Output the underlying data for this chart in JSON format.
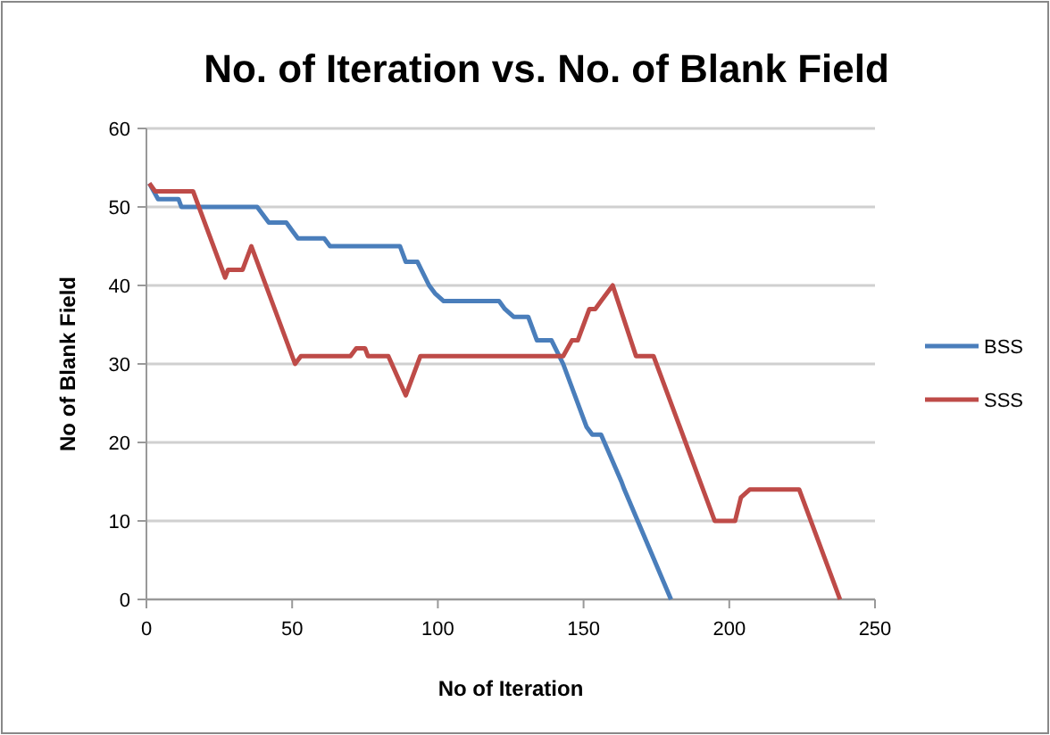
{
  "chart_data": {
    "type": "line",
    "title": "No. of Iteration vs. No. of Blank Field",
    "xlabel": "No of Iteration",
    "ylabel": "No of Blank Field",
    "xlim": [
      0,
      250
    ],
    "xticks": [
      0,
      50,
      100,
      150,
      200,
      250
    ],
    "ylim": [
      0,
      60
    ],
    "yticks": [
      0,
      10,
      20,
      30,
      40,
      50,
      60
    ],
    "grid": "y",
    "legend": "right",
    "marker": "none",
    "line_style": "solid",
    "series": [
      {
        "name": "BSS",
        "color": "#4a7ebb",
        "x": [
          1,
          4,
          11,
          12,
          38,
          40,
          42,
          48,
          50,
          52,
          61,
          63,
          87,
          89,
          93,
          97,
          99,
          102,
          121,
          123,
          126,
          131,
          134,
          139,
          143,
          151,
          153,
          156,
          163,
          164,
          180
        ],
        "values": [
          53,
          51,
          51,
          50,
          50,
          49,
          48,
          48,
          47,
          46,
          46,
          45,
          45,
          43,
          43,
          40,
          39,
          38,
          38,
          37,
          36,
          36,
          33,
          33,
          30,
          22,
          21,
          21,
          15,
          14,
          0
        ]
      },
      {
        "name": "SSS",
        "color": "#be4b48",
        "x": [
          1,
          3,
          16,
          27,
          28,
          33,
          36,
          51,
          53,
          70,
          72,
          75,
          76,
          83,
          89,
          94,
          143,
          146,
          148,
          152,
          154,
          156,
          160,
          168,
          174,
          195,
          202,
          204,
          207,
          224,
          238
        ],
        "values": [
          53,
          52,
          52,
          41,
          42,
          42,
          45,
          30,
          31,
          31,
          32,
          32,
          31,
          31,
          26,
          31,
          31,
          33,
          33,
          37,
          37,
          38,
          40,
          31,
          31,
          10,
          10,
          13,
          14,
          14,
          0
        ]
      }
    ]
  }
}
